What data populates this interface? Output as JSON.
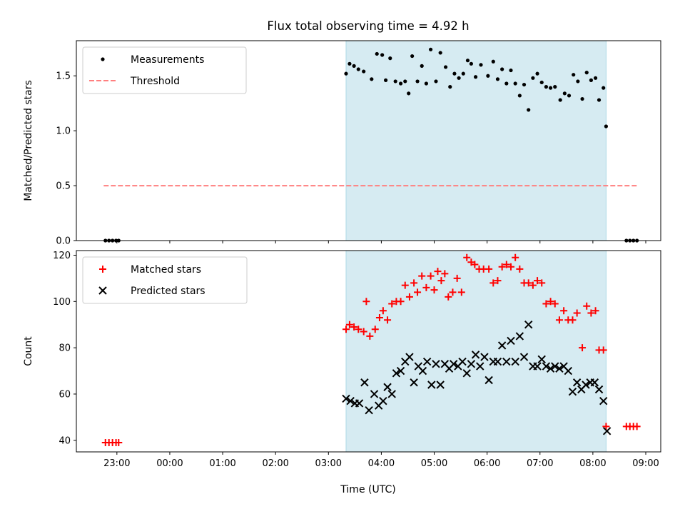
{
  "chart_data": {
    "title": "Flux total observing time = 4.92 h",
    "xlabel": "Time (UTC)",
    "x_ticks": [
      "23:00",
      "00:00",
      "01:00",
      "02:00",
      "03:00",
      "04:00",
      "05:00",
      "06:00",
      "07:00",
      "08:00",
      "09:00"
    ],
    "x_range": [
      "22:14",
      "09:17"
    ],
    "shaded_region": {
      "start": "03:20",
      "end": "08:15",
      "color": "#add8e6"
    },
    "panels": [
      {
        "type": "scatter",
        "ylabel": "Matched/Predicted stars",
        "ylim": [
          0,
          1.82
        ],
        "y_ticks": [
          "0.0",
          "0.5",
          "1.0",
          "1.5"
        ],
        "legend_position": "top-left",
        "series": [
          {
            "name": "Measurements",
            "marker": "dot",
            "color": "#000000",
            "points": [
              [
                "22:47",
                0.0
              ],
              [
                "22:51",
                0.0
              ],
              [
                "22:55",
                0.0
              ],
              [
                "22:59",
                0.0
              ],
              [
                "23:02",
                0.0
              ],
              [
                "03:20",
                1.52
              ],
              [
                "03:24",
                1.61
              ],
              [
                "03:29",
                1.59
              ],
              [
                "03:34",
                1.56
              ],
              [
                "03:40",
                1.54
              ],
              [
                "03:49",
                1.47
              ],
              [
                "03:55",
                1.7
              ],
              [
                "04:01",
                1.69
              ],
              [
                "04:05",
                1.46
              ],
              [
                "04:10",
                1.66
              ],
              [
                "04:16",
                1.45
              ],
              [
                "04:22",
                1.43
              ],
              [
                "04:27",
                1.45
              ],
              [
                "04:31",
                1.34
              ],
              [
                "04:35",
                1.68
              ],
              [
                "04:41",
                1.45
              ],
              [
                "04:46",
                1.59
              ],
              [
                "04:51",
                1.43
              ],
              [
                "04:56",
                1.74
              ],
              [
                "05:02",
                1.45
              ],
              [
                "05:07",
                1.71
              ],
              [
                "05:13",
                1.58
              ],
              [
                "05:18",
                1.4
              ],
              [
                "05:23",
                1.52
              ],
              [
                "05:28",
                1.48
              ],
              [
                "05:33",
                1.52
              ],
              [
                "05:38",
                1.64
              ],
              [
                "05:42",
                1.61
              ],
              [
                "05:47",
                1.49
              ],
              [
                "05:53",
                1.6
              ],
              [
                "06:01",
                1.5
              ],
              [
                "06:07",
                1.63
              ],
              [
                "06:12",
                1.47
              ],
              [
                "06:17",
                1.56
              ],
              [
                "06:22",
                1.43
              ],
              [
                "06:27",
                1.55
              ],
              [
                "06:32",
                1.43
              ],
              [
                "06:37",
                1.32
              ],
              [
                "06:42",
                1.42
              ],
              [
                "06:47",
                1.19
              ],
              [
                "06:52",
                1.48
              ],
              [
                "06:57",
                1.52
              ],
              [
                "07:02",
                1.44
              ],
              [
                "07:07",
                1.4
              ],
              [
                "07:12",
                1.39
              ],
              [
                "07:17",
                1.4
              ],
              [
                "07:23",
                1.28
              ],
              [
                "07:28",
                1.34
              ],
              [
                "07:33",
                1.32
              ],
              [
                "07:38",
                1.51
              ],
              [
                "07:43",
                1.45
              ],
              [
                "07:48",
                1.29
              ],
              [
                "07:53",
                1.53
              ],
              [
                "07:58",
                1.46
              ],
              [
                "08:03",
                1.48
              ],
              [
                "08:07",
                1.28
              ],
              [
                "08:12",
                1.39
              ],
              [
                "08:15",
                1.04
              ],
              [
                "08:38",
                0.0
              ],
              [
                "08:42",
                0.0
              ],
              [
                "08:46",
                0.0
              ],
              [
                "08:50",
                0.0
              ]
            ]
          },
          {
            "name": "Threshold",
            "marker": "dashed-line",
            "color": "#ff7f7f",
            "points": [
              [
                "22:45",
                0.5
              ],
              [
                "08:50",
                0.5
              ]
            ]
          }
        ]
      },
      {
        "type": "scatter",
        "ylabel": "Count",
        "ylim": [
          35,
          122
        ],
        "y_ticks": [
          "40",
          "60",
          "80",
          "100",
          "120"
        ],
        "legend_position": "top-left",
        "series": [
          {
            "name": "Matched stars",
            "marker": "plus",
            "color": "#ff0000",
            "points": [
              [
                "22:47",
                39
              ],
              [
                "22:51",
                39
              ],
              [
                "22:55",
                39
              ],
              [
                "22:59",
                39
              ],
              [
                "23:02",
                39
              ],
              [
                "03:20",
                88
              ],
              [
                "03:24",
                90
              ],
              [
                "03:29",
                89
              ],
              [
                "03:34",
                88
              ],
              [
                "03:40",
                87
              ],
              [
                "03:43",
                100
              ],
              [
                "03:47",
                85
              ],
              [
                "03:53",
                88
              ],
              [
                "03:58",
                93
              ],
              [
                "04:02",
                96
              ],
              [
                "04:07",
                92
              ],
              [
                "04:12",
                99
              ],
              [
                "04:17",
                100
              ],
              [
                "04:22",
                100
              ],
              [
                "04:27",
                107
              ],
              [
                "04:32",
                102
              ],
              [
                "04:37",
                108
              ],
              [
                "04:41",
                104
              ],
              [
                "04:46",
                111
              ],
              [
                "04:51",
                106
              ],
              [
                "04:56",
                111
              ],
              [
                "05:00",
                105
              ],
              [
                "05:04",
                113
              ],
              [
                "05:08",
                109
              ],
              [
                "05:12",
                112
              ],
              [
                "05:16",
                102
              ],
              [
                "05:21",
                104
              ],
              [
                "05:26",
                110
              ],
              [
                "05:31",
                104
              ],
              [
                "05:37",
                119
              ],
              [
                "05:42",
                117
              ],
              [
                "05:46",
                116
              ],
              [
                "05:51",
                114
              ],
              [
                "05:56",
                114
              ],
              [
                "06:02",
                114
              ],
              [
                "06:07",
                108
              ],
              [
                "06:12",
                109
              ],
              [
                "06:17",
                115
              ],
              [
                "06:22",
                116
              ],
              [
                "06:27",
                115
              ],
              [
                "06:32",
                119
              ],
              [
                "06:37",
                114
              ],
              [
                "06:42",
                108
              ],
              [
                "06:47",
                108
              ],
              [
                "06:52",
                107
              ],
              [
                "06:57",
                109
              ],
              [
                "07:02",
                108
              ],
              [
                "07:07",
                99
              ],
              [
                "07:12",
                100
              ],
              [
                "07:17",
                99
              ],
              [
                "07:22",
                92
              ],
              [
                "07:27",
                96
              ],
              [
                "07:32",
                92
              ],
              [
                "07:37",
                92
              ],
              [
                "07:42",
                95
              ],
              [
                "07:48",
                80
              ],
              [
                "07:53",
                98
              ],
              [
                "07:58",
                95
              ],
              [
                "08:03",
                96
              ],
              [
                "08:07",
                79
              ],
              [
                "08:12",
                79
              ],
              [
                "08:15",
                46
              ],
              [
                "08:38",
                46
              ],
              [
                "08:42",
                46
              ],
              [
                "08:46",
                46
              ],
              [
                "08:50",
                46
              ]
            ]
          },
          {
            "name": "Predicted stars",
            "marker": "x",
            "color": "#000000",
            "points": [
              [
                "03:20",
                58
              ],
              [
                "03:25",
                57
              ],
              [
                "03:30",
                56
              ],
              [
                "03:35",
                56
              ],
              [
                "03:41",
                65
              ],
              [
                "03:46",
                53
              ],
              [
                "03:52",
                60
              ],
              [
                "03:57",
                55
              ],
              [
                "04:02",
                57
              ],
              [
                "04:07",
                63
              ],
              [
                "04:12",
                60
              ],
              [
                "04:17",
                69
              ],
              [
                "04:22",
                70
              ],
              [
                "04:27",
                74
              ],
              [
                "04:32",
                76
              ],
              [
                "04:37",
                65
              ],
              [
                "04:42",
                72
              ],
              [
                "04:47",
                70
              ],
              [
                "04:52",
                74
              ],
              [
                "04:57",
                64
              ],
              [
                "05:02",
                73
              ],
              [
                "05:07",
                64
              ],
              [
                "05:12",
                73
              ],
              [
                "05:17",
                71
              ],
              [
                "05:22",
                73
              ],
              [
                "05:27",
                72
              ],
              [
                "05:32",
                74
              ],
              [
                "05:37",
                69
              ],
              [
                "05:42",
                73
              ],
              [
                "05:47",
                77
              ],
              [
                "05:52",
                72
              ],
              [
                "05:57",
                76
              ],
              [
                "06:02",
                66
              ],
              [
                "06:07",
                74
              ],
              [
                "06:12",
                74
              ],
              [
                "06:17",
                81
              ],
              [
                "06:22",
                74
              ],
              [
                "06:27",
                83
              ],
              [
                "06:32",
                74
              ],
              [
                "06:37",
                85
              ],
              [
                "06:42",
                76
              ],
              [
                "06:47",
                90
              ],
              [
                "06:52",
                72
              ],
              [
                "06:57",
                72
              ],
              [
                "07:02",
                75
              ],
              [
                "07:07",
                72
              ],
              [
                "07:12",
                71
              ],
              [
                "07:17",
                72
              ],
              [
                "07:22",
                71
              ],
              [
                "07:27",
                72
              ],
              [
                "07:32",
                70
              ],
              [
                "07:37",
                61
              ],
              [
                "07:42",
                65
              ],
              [
                "07:47",
                62
              ],
              [
                "07:52",
                64
              ],
              [
                "07:57",
                65
              ],
              [
                "08:02",
                65
              ],
              [
                "08:07",
                62
              ],
              [
                "08:12",
                57
              ],
              [
                "08:16",
                44
              ]
            ]
          }
        ]
      }
    ]
  }
}
